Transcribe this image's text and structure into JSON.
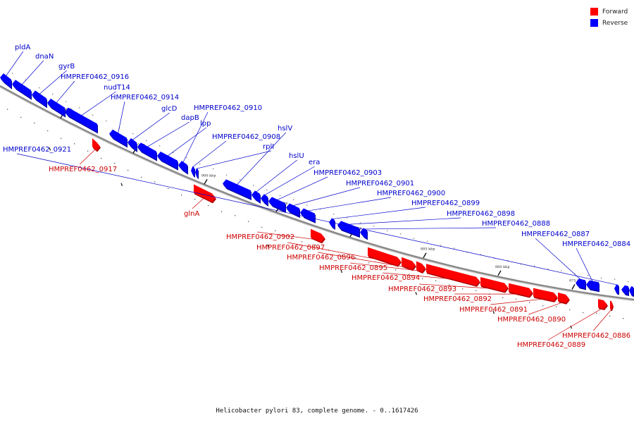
{
  "map": {
    "caption": "Helicobacter pylori 83, complete genome. - 0..1617426",
    "legend": [
      {
        "label": "Forward",
        "color": "#ff0000"
      },
      {
        "label": "Reverse",
        "color": "#0000ff"
      }
    ],
    "colors": {
      "forward": "#ff0000",
      "forward_label": "#cc0000",
      "reverse": "#0000ff",
      "reverse_label": "#0000cc",
      "backbone": "#888888"
    },
    "ticks": [
      "910 kbp",
      "905 kbp",
      "900 kbp",
      "895 kbp",
      "890 kbp",
      "885 kbp",
      "880 kbp",
      "875 kbp"
    ],
    "genes": [
      {
        "name": "pldA",
        "strand": "reverse"
      },
      {
        "name": "dnaN",
        "strand": "reverse"
      },
      {
        "name": "gyrB",
        "strand": "reverse"
      },
      {
        "name": "HMPREF0462_0916",
        "strand": "reverse"
      },
      {
        "name": "nudT14",
        "strand": "reverse"
      },
      {
        "name": "HMPREF0462_0914",
        "strand": "reverse"
      },
      {
        "name": "glcD",
        "strand": "reverse"
      },
      {
        "name": "dapB",
        "strand": "reverse"
      },
      {
        "name": "lpp",
        "strand": "reverse"
      },
      {
        "name": "HMPREF0462_0910",
        "strand": "reverse"
      },
      {
        "name": "HMPREF0462_0908",
        "strand": "reverse"
      },
      {
        "name": "rplI",
        "strand": "reverse"
      },
      {
        "name": "hslV",
        "strand": "reverse"
      },
      {
        "name": "hslU",
        "strand": "reverse"
      },
      {
        "name": "era",
        "strand": "reverse"
      },
      {
        "name": "HMPREF0462_0903",
        "strand": "reverse"
      },
      {
        "name": "HMPREF0462_0901",
        "strand": "reverse"
      },
      {
        "name": "HMPREF0462_0900",
        "strand": "reverse"
      },
      {
        "name": "HMPREF0462_0899",
        "strand": "reverse"
      },
      {
        "name": "HMPREF0462_0898",
        "strand": "reverse"
      },
      {
        "name": "HMPREF0462_0888",
        "strand": "reverse"
      },
      {
        "name": "HMPREF0462_0887",
        "strand": "reverse"
      },
      {
        "name": "HMPREF0462_0884",
        "strand": "reverse"
      },
      {
        "name": "HMPREF0462_0921",
        "strand": "reverse"
      },
      {
        "name": "HMPREF0462_0917",
        "strand": "forward"
      },
      {
        "name": "glnA",
        "strand": "forward"
      },
      {
        "name": "HMPREF0462_0902",
        "strand": "forward"
      },
      {
        "name": "HMPREF0462_0897",
        "strand": "forward"
      },
      {
        "name": "HMPREF0462_0896",
        "strand": "forward"
      },
      {
        "name": "HMPREF0462_0895",
        "strand": "forward"
      },
      {
        "name": "HMPREF0462_0894",
        "strand": "forward"
      },
      {
        "name": "HMPREF0462_0893",
        "strand": "forward"
      },
      {
        "name": "HMPREF0462_0892",
        "strand": "forward"
      },
      {
        "name": "HMPREF0462_0891",
        "strand": "forward"
      },
      {
        "name": "HMPREF0462_0890",
        "strand": "forward"
      },
      {
        "name": "HMPREF0462_0889",
        "strand": "forward"
      },
      {
        "name": "HMPREF0462_0886",
        "strand": "forward"
      }
    ]
  }
}
